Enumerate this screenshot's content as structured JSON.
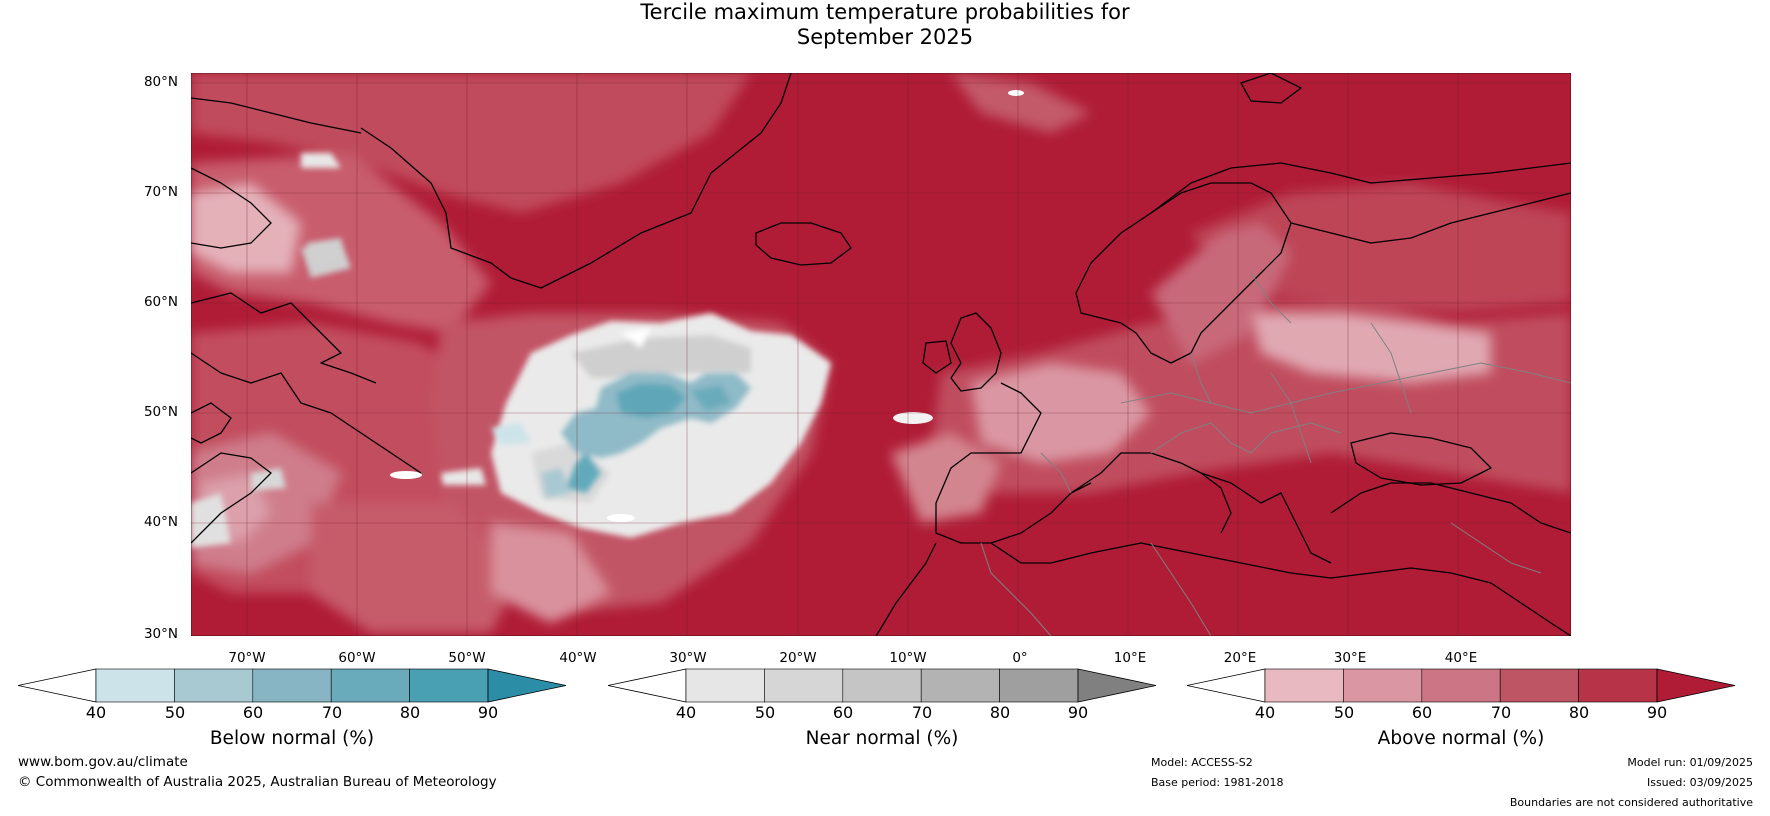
{
  "title_line1": "Tercile maximum temperature probabilities for",
  "title_line2": "September 2025",
  "lat_labels": [
    "80°N",
    "70°N",
    "60°N",
    "50°N",
    "40°N",
    "30°N"
  ],
  "lon_labels": [
    "70°W",
    "60°W",
    "50°W",
    "40°W",
    "30°W",
    "20°W",
    "10°W",
    "0°",
    "10°E",
    "20°E",
    "30°E",
    "40°E"
  ],
  "colorbars": {
    "below": {
      "title": "Below normal (%)",
      "ticks": [
        "40",
        "50",
        "60",
        "70",
        "80",
        "90"
      ],
      "colors": [
        "#ffffff",
        "#cde3ea",
        "#a9c9d2",
        "#88b5c3",
        "#6aabbb",
        "#4aa0b3",
        "#2b8ea6"
      ]
    },
    "near": {
      "title": "Near normal (%)",
      "ticks": [
        "40",
        "50",
        "60",
        "70",
        "80",
        "90"
      ],
      "colors": [
        "#ffffff",
        "#e6e6e6",
        "#d6d6d6",
        "#c5c5c5",
        "#b3b3b3",
        "#9f9f9f",
        "#808080"
      ]
    },
    "above": {
      "title": "Above normal (%)",
      "ticks": [
        "40",
        "50",
        "60",
        "70",
        "80",
        "90"
      ],
      "colors": [
        "#ffffff",
        "#e8b9c1",
        "#da97a3",
        "#cc7584",
        "#be5565",
        "#b73348",
        "#b01c36"
      ]
    }
  },
  "footer": {
    "website": "www.bom.gov.au/climate",
    "copyright": "© Commonwealth of Australia 2025, Australian Bureau of Meteorology",
    "model": "Model: ACCESS-S2",
    "base_period": "Base period: 1981-2018",
    "model_run": "Model run: 01/09/2025",
    "issued": "Issued: 03/09/2025",
    "disclaimer": "Boundaries are not considered authoritative"
  }
}
